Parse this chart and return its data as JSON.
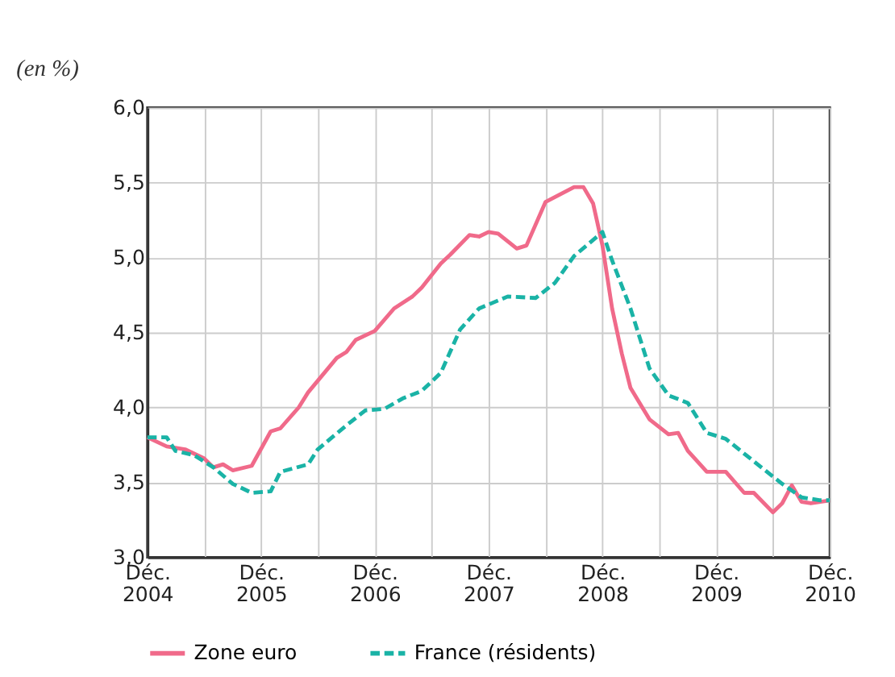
{
  "chart_data": {
    "type": "line",
    "ylabel": "(en %)",
    "xlim": [
      "2004-12-01",
      "2010-12-01"
    ],
    "ylim": [
      3.0,
      6.0
    ],
    "yticks": [
      {
        "value": 3.0,
        "label": "3,0"
      },
      {
        "value": 3.5,
        "label": "3,5"
      },
      {
        "value": 4.0,
        "label": "4,0"
      },
      {
        "value": 4.5,
        "label": "4,5"
      },
      {
        "value": 5.0,
        "label": "5,0"
      },
      {
        "value": 5.5,
        "label": "5,5"
      },
      {
        "value": 6.0,
        "label": "6,0"
      }
    ],
    "xticks": [
      {
        "value": "2004-12-01",
        "label": "Déc. 2004"
      },
      {
        "value": "2005-06-01",
        "label": null
      },
      {
        "value": "2005-12-01",
        "label": "Déc. 2005"
      },
      {
        "value": "2006-06-01",
        "label": null
      },
      {
        "value": "2006-12-01",
        "label": "Déc. 2006"
      },
      {
        "value": "2007-06-01",
        "label": null
      },
      {
        "value": "2007-12-01",
        "label": "Déc. 2007"
      },
      {
        "value": "2008-06-01",
        "label": null
      },
      {
        "value": "2008-12-01",
        "label": "Déc. 2008"
      },
      {
        "value": "2009-06-01",
        "label": null
      },
      {
        "value": "2009-12-01",
        "label": "Déc. 2009"
      },
      {
        "value": "2010-06-01",
        "label": null
      },
      {
        "value": "2010-12-01",
        "label": "Déc. 2010"
      }
    ],
    "grid": true,
    "legend": "bottom",
    "series": [
      {
        "name": "Zone euro",
        "color": "#f06a8a",
        "line_style": "solid",
        "x": [
          "2004-12-01",
          "2005-02-01",
          "2005-04-01",
          "2005-06-01",
          "2005-07-01",
          "2005-08-01",
          "2005-09-01",
          "2005-11-01",
          "2006-01-01",
          "2006-02-01",
          "2006-04-01",
          "2006-05-01",
          "2006-08-01",
          "2006-09-01",
          "2006-10-01",
          "2006-12-01",
          "2007-02-01",
          "2007-04-01",
          "2007-05-01",
          "2007-07-01",
          "2007-08-01",
          "2007-10-01",
          "2007-11-01",
          "2007-12-01",
          "2008-01-01",
          "2008-03-01",
          "2008-04-01",
          "2008-06-01",
          "2008-09-01",
          "2008-10-01",
          "2008-11-01",
          "2008-12-01",
          "2009-01-01",
          "2009-02-01",
          "2009-03-01",
          "2009-05-01",
          "2009-07-01",
          "2009-08-01",
          "2009-09-01",
          "2009-11-01",
          "2010-01-01",
          "2010-03-01",
          "2010-04-01",
          "2010-06-01",
          "2010-07-01",
          "2010-08-01",
          "2010-09-01",
          "2010-10-01",
          "2010-12-01"
        ],
        "values": [
          3.8,
          3.74,
          3.72,
          3.66,
          3.6,
          3.62,
          3.58,
          3.61,
          3.84,
          3.86,
          4.0,
          4.1,
          4.33,
          4.37,
          4.45,
          4.51,
          4.66,
          4.74,
          4.8,
          4.96,
          5.02,
          5.15,
          5.14,
          5.17,
          5.16,
          5.06,
          5.08,
          5.37,
          5.47,
          5.47,
          5.36,
          5.08,
          4.66,
          4.36,
          4.13,
          3.92,
          3.82,
          3.83,
          3.71,
          3.57,
          3.57,
          3.43,
          3.43,
          3.3,
          3.36,
          3.48,
          3.37,
          3.36,
          3.38
        ]
      },
      {
        "name": "France (résidents)",
        "color": "#1ab3a6",
        "line_style": "dashed",
        "x": [
          "2004-12-01",
          "2005-02-01",
          "2005-03-01",
          "2005-05-01",
          "2005-07-01",
          "2005-09-01",
          "2005-11-01",
          "2006-01-01",
          "2006-02-01",
          "2006-05-01",
          "2006-06-01",
          "2006-09-01",
          "2006-11-01",
          "2007-01-01",
          "2007-03-01",
          "2007-05-01",
          "2007-07-01",
          "2007-09-01",
          "2007-11-01",
          "2008-02-01",
          "2008-05-01",
          "2008-07-01",
          "2008-09-01",
          "2008-12-01",
          "2009-01-01",
          "2009-03-01",
          "2009-05-01",
          "2009-07-01",
          "2009-09-01",
          "2009-11-01",
          "2010-01-01",
          "2010-04-01",
          "2010-07-01",
          "2010-09-01",
          "2010-11-01",
          "2010-12-01"
        ],
        "values": [
          3.8,
          3.8,
          3.71,
          3.68,
          3.6,
          3.49,
          3.43,
          3.44,
          3.57,
          3.62,
          3.72,
          3.88,
          3.98,
          3.99,
          4.06,
          4.11,
          4.23,
          4.52,
          4.66,
          4.74,
          4.73,
          4.83,
          5.01,
          5.17,
          4.98,
          4.66,
          4.26,
          4.08,
          4.03,
          3.83,
          3.79,
          3.64,
          3.49,
          3.4,
          3.38,
          3.38
        ]
      }
    ]
  }
}
